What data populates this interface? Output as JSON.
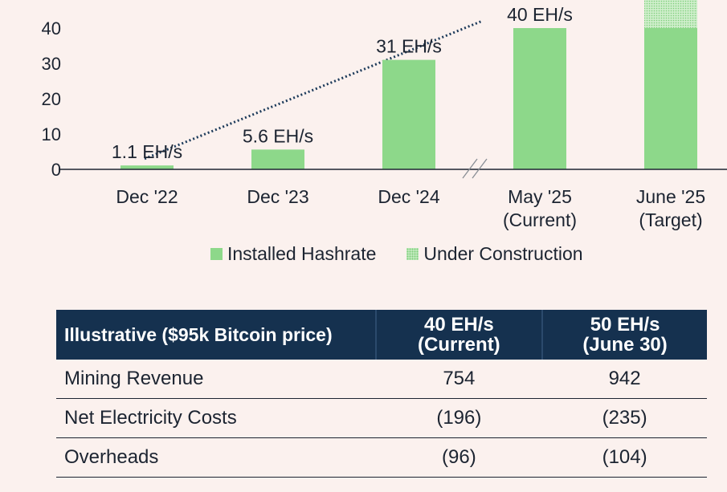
{
  "chart_data": {
    "type": "bar",
    "categories": [
      [
        "Dec '22"
      ],
      [
        "Dec '23"
      ],
      [
        "Dec '24"
      ],
      [
        "May '25",
        "(Current)"
      ],
      [
        "June '25",
        "(Target)"
      ]
    ],
    "series": [
      {
        "name": "Installed Hashrate",
        "values": [
          1.1,
          5.6,
          31,
          40,
          40
        ]
      },
      {
        "name": "Under Construction",
        "values": [
          0,
          0,
          0,
          0,
          10
        ]
      }
    ],
    "data_labels": [
      "1.1 EH/s",
      "5.6 EH/s",
      "31 EH/s",
      "40 EH/s",
      ""
    ],
    "yticks": [
      0,
      10,
      20,
      30,
      40
    ],
    "ylim": [
      0,
      50
    ],
    "axis_break_between": [
      "Dec '24",
      "May '25"
    ],
    "trend_line": {
      "style": "dotted",
      "from": 3,
      "to": 32
    },
    "colors": {
      "installed": "#8dd88a",
      "construction": "#c9ecc5",
      "axis": "#1c2431"
    },
    "legend": [
      "Installed Hashrate",
      "Under Construction"
    ],
    "legend_position": "bottom"
  },
  "table": {
    "headers": [
      [
        "Illustrative ($95k Bitcoin price)"
      ],
      [
        "40 EH/s",
        "(Current)"
      ],
      [
        "50 EH/s",
        "(June 30)"
      ]
    ],
    "rows": [
      {
        "label": "Mining Revenue",
        "current": "754",
        "june": "942"
      },
      {
        "label": "Net Electricity Costs",
        "current": "(196)",
        "june": "(235)"
      },
      {
        "label": "Overheads",
        "current": "(96)",
        "june": "(104)"
      }
    ]
  }
}
